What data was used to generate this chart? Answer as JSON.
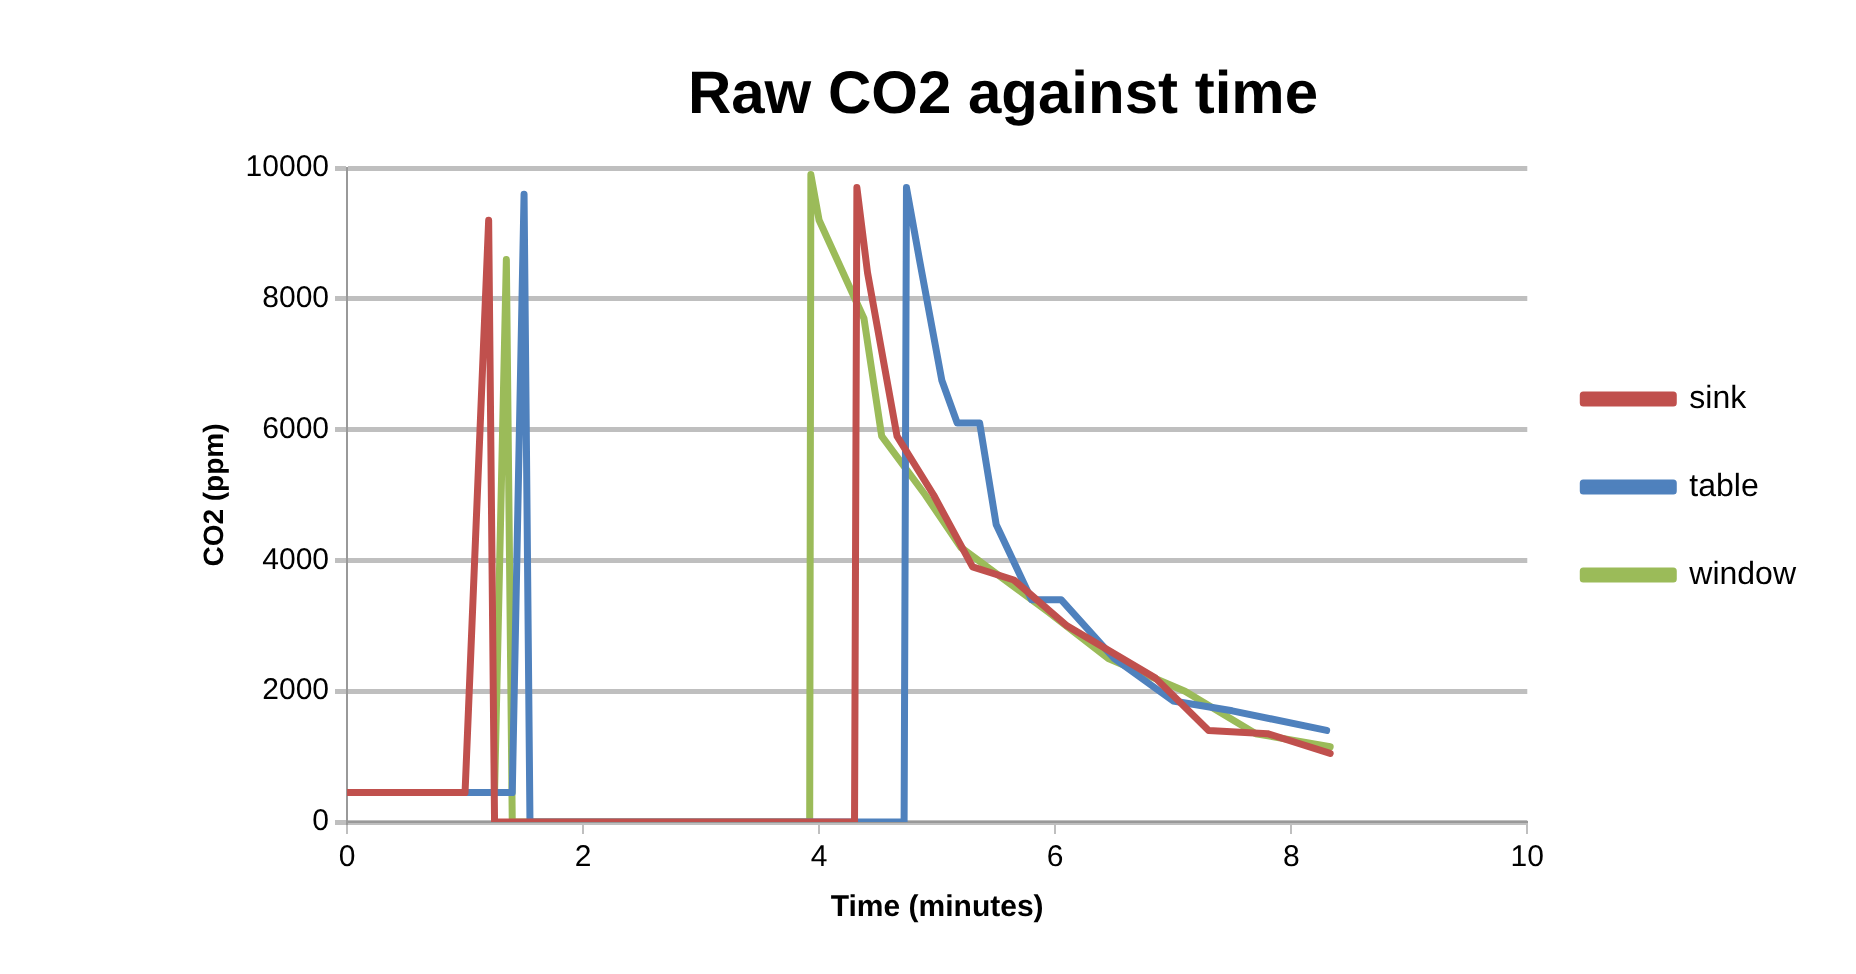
{
  "chart_data": {
    "type": "line",
    "title": "Raw CO2 against time",
    "xlabel": "Time (minutes)",
    "ylabel": "CO2 (ppm)",
    "xlim": [
      0,
      10
    ],
    "xticks": [
      0,
      2,
      4,
      6,
      8,
      10
    ],
    "ylim": [
      0,
      10000
    ],
    "yticks": [
      0,
      2000,
      4000,
      6000,
      8000,
      10000
    ],
    "grid": "y",
    "legend": "right",
    "marker": "none",
    "line_style": "solid",
    "series": [
      {
        "name": "sink",
        "color": "#c0504d",
        "x": [
          0,
          1.0,
          1.2,
          1.25,
          4.3,
          4.32,
          4.41,
          4.66,
          4.97,
          5.3,
          5.65,
          6.1,
          6.85,
          7.3,
          7.8,
          8.33
        ],
        "values": [
          450,
          450,
          9200,
          0,
          0,
          9700,
          8400,
          5900,
          5000,
          3900,
          3700,
          3000,
          2200,
          1400,
          1350,
          1050
        ]
      },
      {
        "name": "table",
        "color": "#4f81bd",
        "x": [
          0,
          1.4,
          1.5,
          1.55,
          4.72,
          4.74,
          4.85,
          5.04,
          5.17,
          5.36,
          5.5,
          5.8,
          6.05,
          6.5,
          7.0,
          7.5,
          8.3
        ],
        "values": [
          450,
          450,
          9600,
          0,
          0,
          9700,
          8600,
          6750,
          6100,
          6100,
          4550,
          3400,
          3400,
          2500,
          1850,
          1700,
          1400
        ]
      },
      {
        "name": "window",
        "color": "#9bbb59",
        "x": [
          0,
          1.25,
          1.35,
          1.4,
          3.92,
          3.93,
          4.0,
          4.38,
          4.53,
          4.9,
          5.2,
          5.95,
          6.45,
          7.1,
          7.7,
          8.33
        ],
        "values": [
          450,
          450,
          8600,
          0,
          0,
          9900,
          9200,
          7700,
          5900,
          5000,
          4200,
          3200,
          2500,
          2000,
          1350,
          1150
        ]
      }
    ]
  }
}
